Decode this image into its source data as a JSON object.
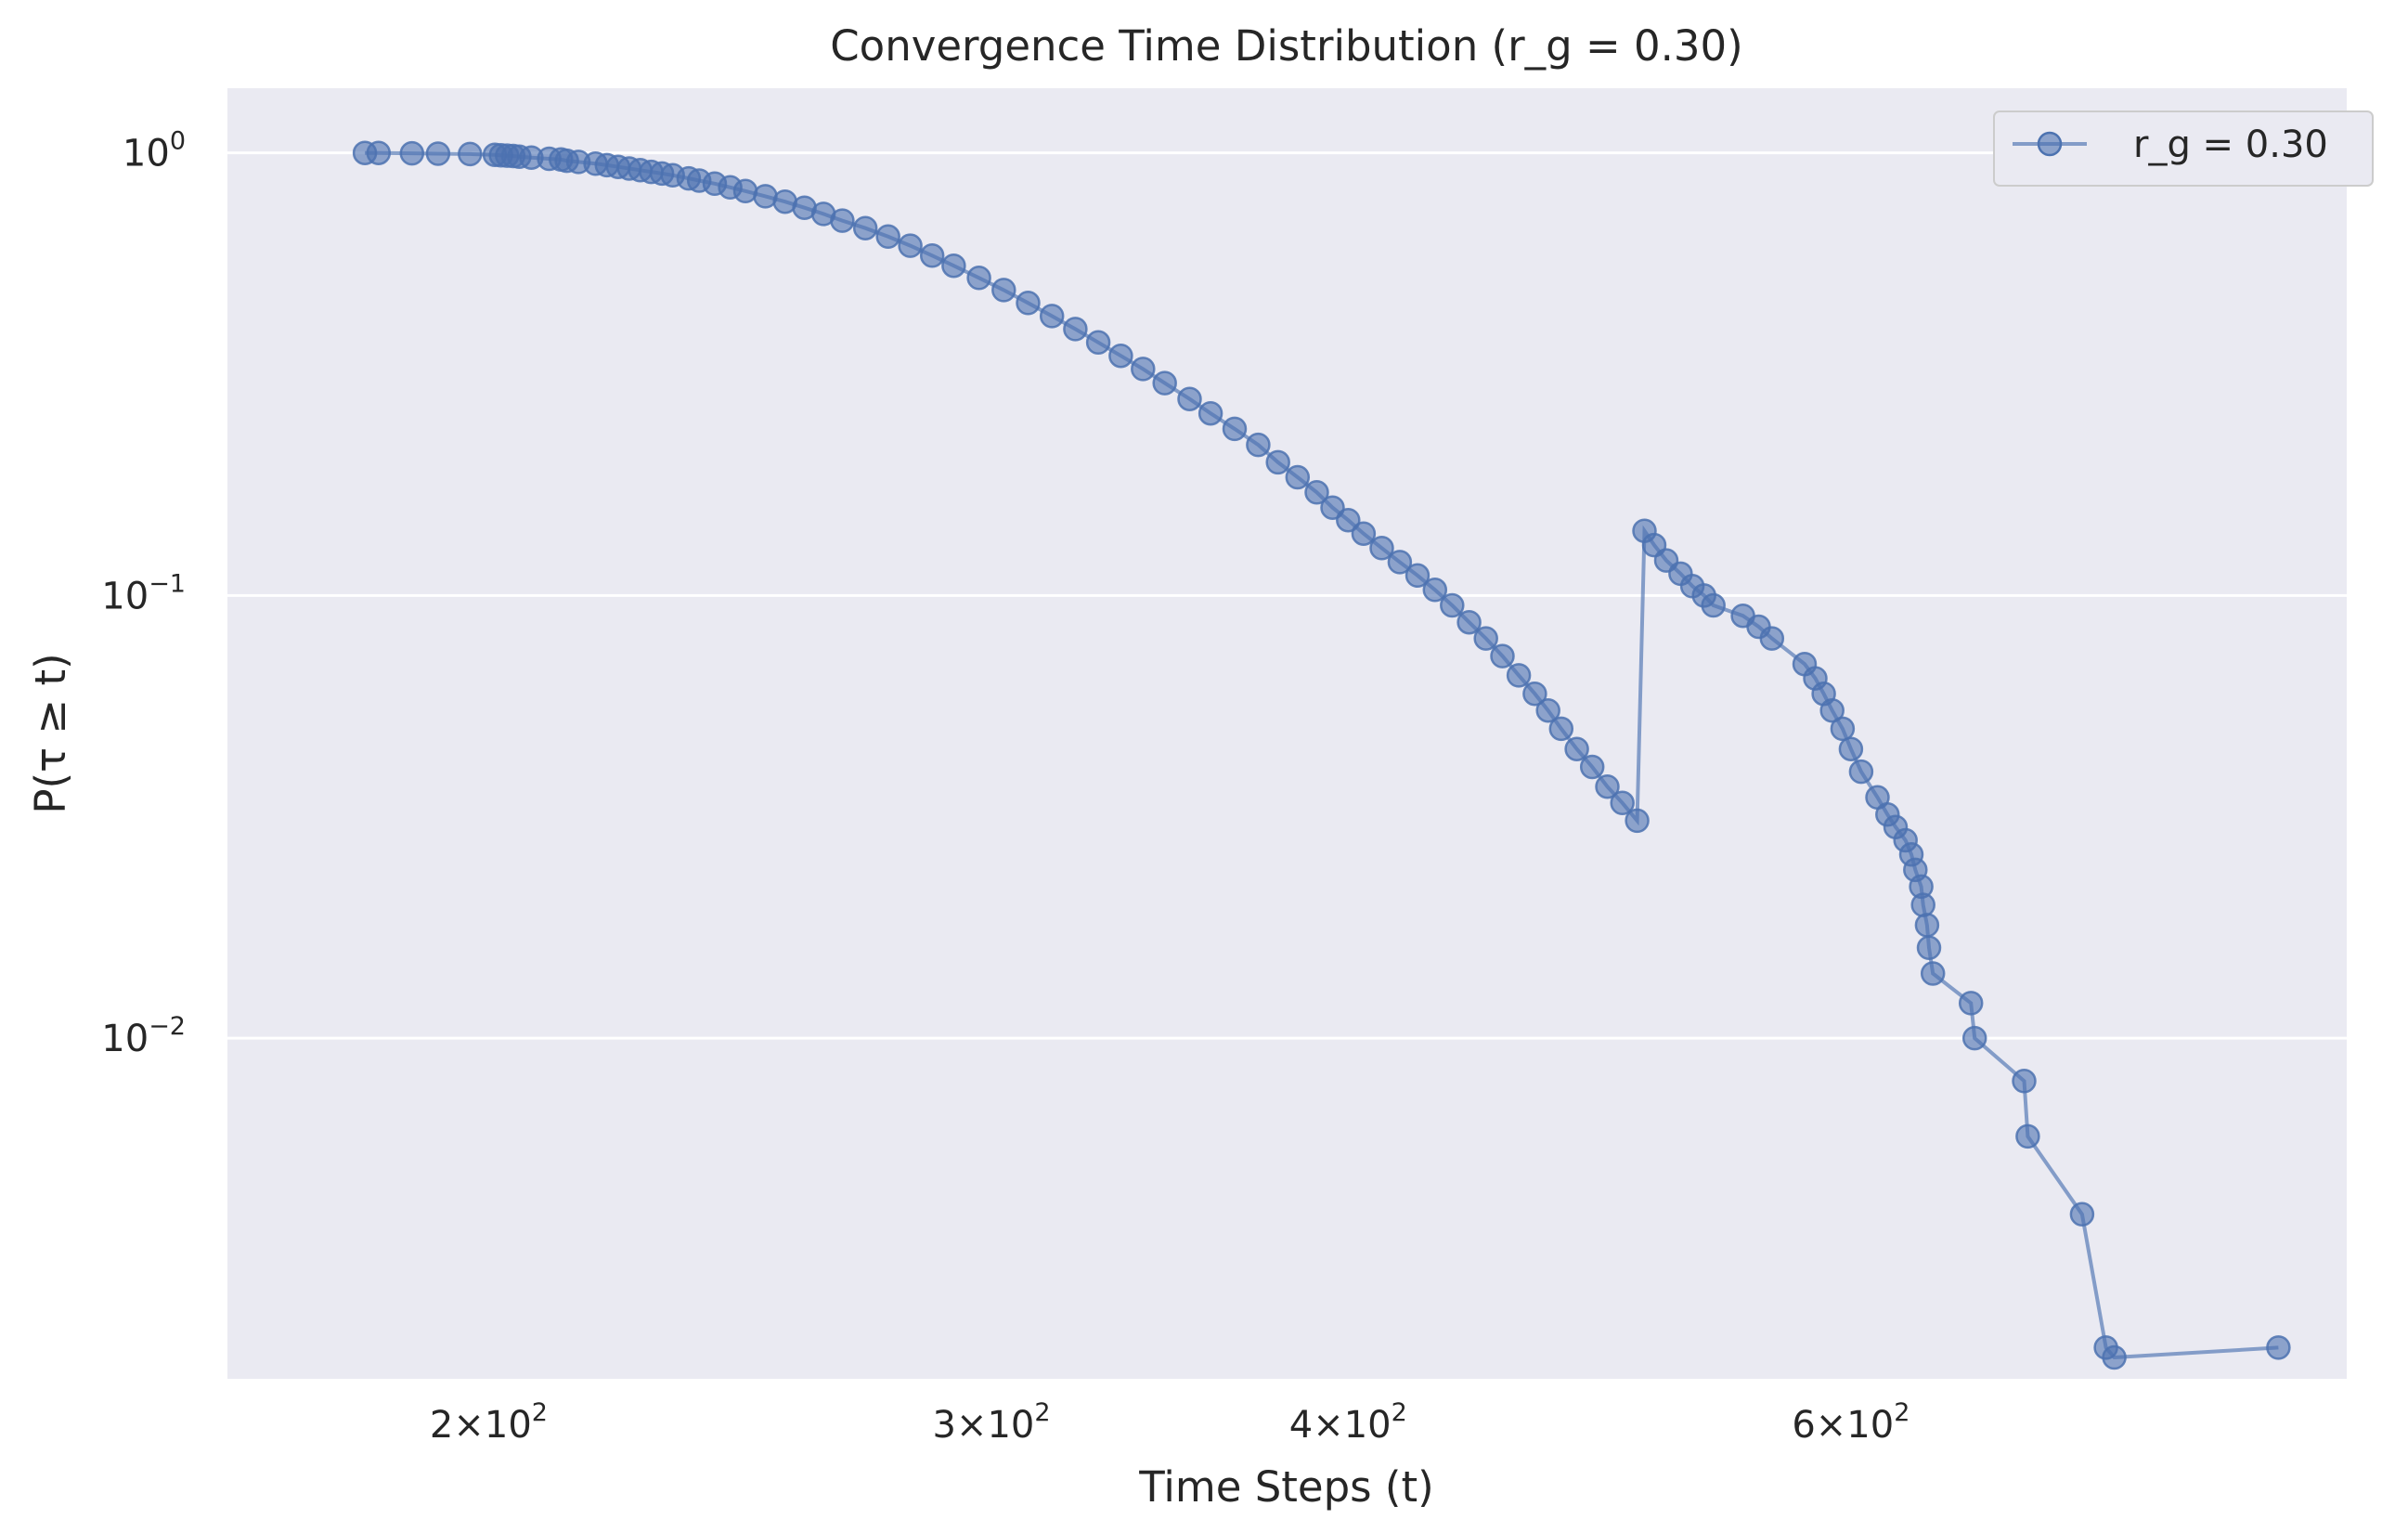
{
  "chart_data": {
    "type": "line",
    "title": "Convergence Time Distribution (r_g = 0.30)",
    "xlabel": "Time Steps (t)",
    "ylabel": "P(τ ≥ t)",
    "xscale": "log",
    "yscale": "log",
    "xlim": [
      162,
      895
    ],
    "ylim": [
      0.0017,
      1.4
    ],
    "grid": "horizontal",
    "legend_position": "top-right",
    "background_color": "#eaeaf2",
    "series_color": "#4c72b0",
    "x_ticks": [
      {
        "value": 200,
        "mant": "2",
        "times": "×",
        "base": "10",
        "exp": "2"
      },
      {
        "value": 300,
        "mant": "3",
        "times": "×",
        "base": "10",
        "exp": "2"
      },
      {
        "value": 400,
        "mant": "4",
        "times": "×",
        "base": "10",
        "exp": "2"
      },
      {
        "value": 600,
        "mant": "6",
        "times": "×",
        "base": "10",
        "exp": "2"
      }
    ],
    "y_ticks": [
      {
        "value": 1,
        "base": "10",
        "exp": "0"
      },
      {
        "value": 0.1,
        "base": "10",
        "exp": "−1"
      },
      {
        "value": 0.01,
        "base": "10",
        "exp": "−2"
      }
    ],
    "series": [
      {
        "name": "r_g = 0.30",
        "marker": "circle",
        "x": [
          181,
          183,
          188,
          192,
          197,
          201,
          202,
          203,
          204,
          205,
          207,
          210,
          212,
          213,
          215,
          218,
          220,
          222,
          224,
          226,
          228,
          230,
          232,
          235,
          237,
          240,
          243,
          246,
          250,
          254,
          258,
          262,
          266,
          271,
          276,
          281,
          286,
          291,
          297,
          303,
          309,
          315,
          321,
          327,
          333,
          339,
          345,
          352,
          358,
          365,
          372,
          378,
          384,
          390,
          395,
          400,
          405,
          411,
          417,
          423,
          429,
          435,
          441,
          447,
          453,
          459,
          465,
          470,
          475,
          481,
          487,
          493,
          499,
          505,
          508,
          512,
          517,
          523,
          528,
          533,
          537,
          550,
          557,
          563,
          578,
          583,
          587,
          591,
          596,
          600,
          605,
          613,
          618,
          622,
          627,
          630,
          632,
          635,
          636,
          638,
          639,
          641,
          661,
          663,
          690,
          692,
          723,
          737,
          742,
          847
        ],
        "y": [
          1.0,
          1.0,
          0.998,
          0.996,
          0.994,
          0.99,
          0.988,
          0.986,
          0.984,
          0.98,
          0.976,
          0.97,
          0.966,
          0.96,
          0.954,
          0.946,
          0.938,
          0.93,
          0.922,
          0.914,
          0.906,
          0.898,
          0.89,
          0.876,
          0.866,
          0.852,
          0.836,
          0.82,
          0.798,
          0.776,
          0.752,
          0.728,
          0.703,
          0.676,
          0.647,
          0.617,
          0.586,
          0.556,
          0.522,
          0.49,
          0.458,
          0.428,
          0.4,
          0.373,
          0.348,
          0.325,
          0.302,
          0.278,
          0.258,
          0.238,
          0.219,
          0.2,
          0.185,
          0.171,
          0.158,
          0.148,
          0.138,
          0.128,
          0.119,
          0.111,
          0.103,
          0.095,
          0.087,
          0.08,
          0.073,
          0.066,
          0.06,
          0.055,
          0.05,
          0.045,
          0.041,
          0.037,
          0.034,
          0.031,
          0.14,
          0.13,
          0.12,
          0.112,
          0.105,
          0.1,
          0.095,
          0.09,
          0.085,
          0.08,
          0.07,
          0.065,
          0.06,
          0.055,
          0.05,
          0.045,
          0.04,
          0.035,
          0.032,
          0.03,
          0.028,
          0.026,
          0.024,
          0.022,
          0.02,
          0.018,
          0.016,
          0.014,
          0.012,
          0.01,
          0.008,
          0.006,
          0.004,
          0.002,
          0.0019,
          0.002
        ]
      }
    ]
  }
}
